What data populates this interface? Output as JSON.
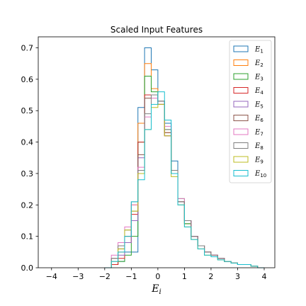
{
  "chart_data": {
    "type": "histogram",
    "title": "Scaled Input Features",
    "xlabel_base": "E",
    "xlabel_sub": "i",
    "ylabel": "",
    "xlim": [
      -4.5,
      4.4
    ],
    "ylim": [
      0,
      0.735
    ],
    "xticks": [
      -4,
      -3,
      -2,
      -1,
      0,
      1,
      2,
      3,
      4
    ],
    "yticks": [
      0.0,
      0.1,
      0.2,
      0.3,
      0.4,
      0.5,
      0.6,
      0.7
    ],
    "xtick_labels": [
      "−4",
      "−3",
      "−2",
      "−1",
      "0",
      "1",
      "2",
      "3",
      "4"
    ],
    "ytick_labels": [
      "0.0",
      "0.1",
      "0.2",
      "0.3",
      "0.4",
      "0.5",
      "0.6",
      "0.7"
    ],
    "grid": false,
    "legend_position": "top-right",
    "histtype": "step",
    "bin_edges": [
      -2.0,
      -1.75,
      -1.5,
      -1.25,
      -1.0,
      -0.75,
      -0.5,
      -0.25,
      0.0,
      0.25,
      0.5,
      0.75,
      1.0,
      1.25,
      1.5,
      1.75,
      2.0,
      2.25,
      2.5,
      2.75,
      3.0,
      3.25,
      3.5,
      3.75,
      4.0
    ],
    "series": [
      {
        "name": "E1",
        "base": "E",
        "sub": "1",
        "color": "#1f77b4",
        "values": [
          0,
          0.01,
          0.02,
          0.05,
          0.05,
          0.51,
          0.7,
          0.63,
          0.53,
          0.46,
          0.34,
          0.21,
          0.14,
          0.1,
          0.07,
          0.05,
          0.04,
          0.03,
          0.02,
          0.015,
          0.01,
          0.01,
          0.005,
          0
        ]
      },
      {
        "name": "E2",
        "base": "E",
        "sub": "2",
        "color": "#ff7f0e",
        "values": [
          0,
          0.01,
          0.05,
          0.1,
          0.2,
          0.46,
          0.65,
          0.57,
          0.52,
          0.43,
          0.3,
          0.21,
          0.14,
          0.1,
          0.07,
          0.05,
          0.04,
          0.03,
          0.02,
          0.015,
          0.01,
          0.01,
          0.005,
          0
        ]
      },
      {
        "name": "E3",
        "base": "E",
        "sub": "3",
        "color": "#2ca02c",
        "values": [
          0,
          0.01,
          0.02,
          0.04,
          0.1,
          0.4,
          0.61,
          0.56,
          0.53,
          0.44,
          0.3,
          0.22,
          0.14,
          0.1,
          0.07,
          0.05,
          0.04,
          0.03,
          0.02,
          0.015,
          0.01,
          0.01,
          0.005,
          0
        ]
      },
      {
        "name": "E4",
        "base": "E",
        "sub": "4",
        "color": "#d62728",
        "values": [
          0,
          0.01,
          0.03,
          0.08,
          0.17,
          0.4,
          0.55,
          0.54,
          0.52,
          0.42,
          0.31,
          0.21,
          0.15,
          0.1,
          0.07,
          0.05,
          0.04,
          0.03,
          0.02,
          0.015,
          0.01,
          0.01,
          0.005,
          0
        ]
      },
      {
        "name": "E5",
        "base": "E",
        "sub": "5",
        "color": "#9467bd",
        "values": [
          0,
          0.02,
          0.04,
          0.08,
          0.15,
          0.35,
          0.54,
          0.54,
          0.52,
          0.42,
          0.3,
          0.21,
          0.15,
          0.1,
          0.07,
          0.05,
          0.04,
          0.03,
          0.02,
          0.015,
          0.01,
          0.01,
          0.005,
          0
        ]
      },
      {
        "name": "E6",
        "base": "E",
        "sub": "6",
        "color": "#8c564b",
        "values": [
          0,
          0.03,
          0.06,
          0.1,
          0.18,
          0.36,
          0.54,
          0.55,
          0.53,
          0.43,
          0.31,
          0.21,
          0.15,
          0.1,
          0.07,
          0.05,
          0.04,
          0.03,
          0.02,
          0.015,
          0.01,
          0.01,
          0.005,
          0
        ]
      },
      {
        "name": "E7",
        "base": "E",
        "sub": "7",
        "color": "#e377c2",
        "values": [
          0,
          0.04,
          0.08,
          0.13,
          0.2,
          0.32,
          0.48,
          0.54,
          0.53,
          0.45,
          0.31,
          0.22,
          0.15,
          0.1,
          0.07,
          0.05,
          0.04,
          0.03,
          0.02,
          0.015,
          0.01,
          0.01,
          0.005,
          0
        ]
      },
      {
        "name": "E8",
        "base": "E",
        "sub": "8",
        "color": "#7f7f7f",
        "values": [
          0,
          0.03,
          0.07,
          0.12,
          0.21,
          0.31,
          0.49,
          0.55,
          0.53,
          0.44,
          0.31,
          0.21,
          0.15,
          0.1,
          0.07,
          0.05,
          0.04,
          0.03,
          0.02,
          0.015,
          0.01,
          0.01,
          0.005,
          0
        ]
      },
      {
        "name": "E9",
        "base": "E",
        "sub": "9",
        "color": "#bcbd22",
        "values": [
          0,
          0.02,
          0.06,
          0.12,
          0.18,
          0.3,
          0.44,
          0.51,
          0.52,
          0.42,
          0.29,
          0.2,
          0.13,
          0.09,
          0.06,
          0.04,
          0.035,
          0.025,
          0.02,
          0.015,
          0.01,
          0.01,
          0.005,
          0
        ]
      },
      {
        "name": "E10",
        "base": "E",
        "sub": "10",
        "color": "#17becf",
        "values": [
          0,
          0.02,
          0.05,
          0.1,
          0.21,
          0.28,
          0.44,
          0.52,
          0.56,
          0.47,
          0.3,
          0.2,
          0.13,
          0.09,
          0.06,
          0.04,
          0.035,
          0.025,
          0.02,
          0.015,
          0.01,
          0.01,
          0.005,
          0
        ]
      }
    ]
  }
}
